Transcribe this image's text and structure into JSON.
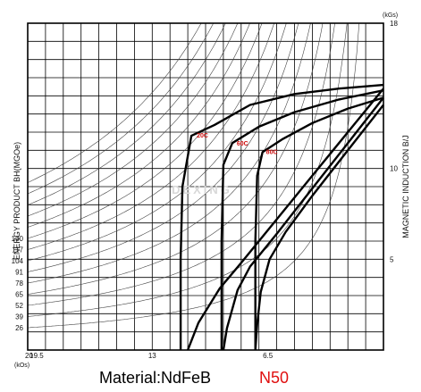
{
  "chart_data": {
    "type": "line",
    "title": "",
    "material_label": "Material:NdFeB",
    "grade_label": "N50",
    "grade_color": "#e01010",
    "watermark": "DEXING",
    "left_axis_title": "ENERGY PRODUCT BH(MGOe)",
    "right_axis_title": "MAGNETIC INDUCTION B/J",
    "right_axis_unit": "(kGs)",
    "bottom_axis_unit": "(kOs)",
    "x_axis": {
      "reversed": true,
      "xlim": [
        20,
        0
      ],
      "ticks": [
        {
          "value": 20,
          "label": "20"
        },
        {
          "value": 19.5,
          "label": "19.5"
        },
        {
          "value": 13,
          "label": "13"
        },
        {
          "value": 6.5,
          "label": "6.5"
        }
      ]
    },
    "y_axis_right": {
      "ylim": [
        0,
        18
      ],
      "ticks": [
        {
          "value": 18,
          "label": "18"
        },
        {
          "value": 10,
          "label": "10"
        },
        {
          "value": 5,
          "label": "5"
        }
      ]
    },
    "bh_labels": [
      "130",
      "117",
      "104",
      "91",
      "78",
      "65",
      "52",
      "39",
      "26"
    ],
    "grid": true,
    "series": [
      {
        "name": "20C",
        "j_curve": [
          [
            0,
            14.6
          ],
          [
            2.5,
            14.4
          ],
          [
            5,
            14.1
          ],
          [
            7.5,
            13.5
          ],
          [
            9.5,
            12.4
          ],
          [
            10.8,
            11.8
          ],
          [
            11.3,
            9
          ],
          [
            11.4,
            5
          ],
          [
            11.4,
            0
          ]
        ],
        "b_curve": [
          [
            0,
            14.4
          ],
          [
            2,
            12.0
          ],
          [
            4,
            9.6
          ],
          [
            6,
            7.2
          ],
          [
            8,
            4.8
          ],
          [
            9.2,
            3.4
          ],
          [
            10.4,
            1.5
          ],
          [
            11.0,
            0
          ]
        ]
      },
      {
        "name": "60C",
        "j_curve": [
          [
            0,
            14.3
          ],
          [
            2.5,
            13.8
          ],
          [
            5,
            13.1
          ],
          [
            7,
            12.3
          ],
          [
            8.5,
            11.4
          ],
          [
            9.0,
            10.2
          ],
          [
            9.1,
            6
          ],
          [
            9.1,
            0
          ]
        ],
        "b_curve": [
          [
            0,
            13.9
          ],
          [
            2,
            11.4
          ],
          [
            4,
            8.9
          ],
          [
            6,
            6.4
          ],
          [
            7.5,
            4.6
          ],
          [
            8.2,
            3.3
          ],
          [
            8.8,
            1.2
          ],
          [
            9.0,
            0
          ]
        ]
      },
      {
        "name": "80C",
        "j_curve": [
          [
            0,
            13.9
          ],
          [
            2,
            13.3
          ],
          [
            4,
            12.5
          ],
          [
            5.7,
            11.6
          ],
          [
            6.8,
            10.9
          ],
          [
            7.1,
            9.6
          ],
          [
            7.2,
            6
          ],
          [
            7.2,
            0
          ]
        ],
        "b_curve": [
          [
            0,
            13.5
          ],
          [
            2,
            11.0
          ],
          [
            4,
            8.5
          ],
          [
            5.5,
            6.5
          ],
          [
            6.4,
            5.0
          ],
          [
            6.9,
            3.2
          ],
          [
            7.1,
            1.4
          ],
          [
            7.2,
            0
          ]
        ]
      }
    ]
  }
}
